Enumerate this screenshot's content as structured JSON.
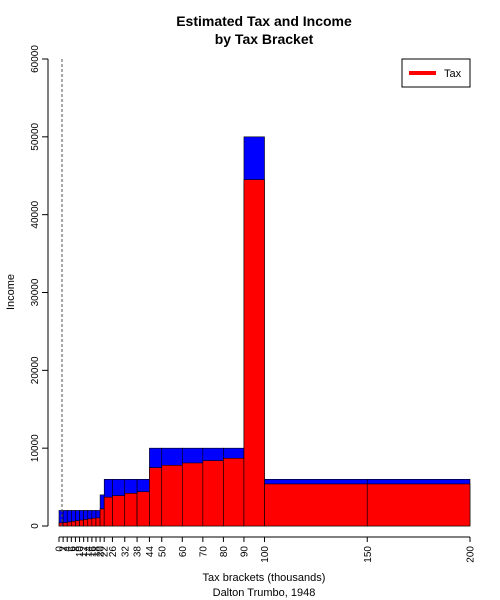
{
  "chart_data": {
    "type": "bar",
    "title": [
      "Estimated Tax and Income",
      "by Tax Bracket"
    ],
    "xlabel": "Tax brackets (thousands)",
    "subtitle": "Dalton Trumbo, 1948",
    "ylabel": "Income",
    "ylim": [
      0,
      60000
    ],
    "xlim": [
      0,
      200
    ],
    "y_ticks": [
      0,
      10000,
      20000,
      30000,
      40000,
      50000,
      60000
    ],
    "x_ticks": [
      0,
      2,
      4,
      6,
      8,
      10,
      12,
      14,
      16,
      18,
      20,
      22,
      26,
      32,
      38,
      44,
      50,
      60,
      70,
      80,
      90,
      100,
      150,
      200
    ],
    "x_tick_labels": [
      "0",
      "2",
      "4",
      "6",
      "8",
      "10",
      "12",
      "14",
      "16",
      "18",
      "20",
      "22",
      "26",
      "32",
      "38",
      "44",
      "50",
      "60",
      "70",
      "80",
      "90",
      "100",
      "150",
      "200"
    ],
    "reference_line_x": 0,
    "colors": {
      "income": "#0000ff",
      "tax": "#ff0000"
    },
    "legend": {
      "position": "top-right",
      "entries": [
        {
          "name": "Tax",
          "color": "#ff0000"
        }
      ]
    },
    "brackets": [
      {
        "lo": 0,
        "hi": 2,
        "income": 2000,
        "tax": 400
      },
      {
        "lo": 2,
        "hi": 4,
        "income": 2000,
        "tax": 440
      },
      {
        "lo": 4,
        "hi": 6,
        "income": 2000,
        "tax": 520
      },
      {
        "lo": 6,
        "hi": 8,
        "income": 2000,
        "tax": 600
      },
      {
        "lo": 8,
        "hi": 10,
        "income": 2000,
        "tax": 680
      },
      {
        "lo": 10,
        "hi": 12,
        "income": 2000,
        "tax": 760
      },
      {
        "lo": 12,
        "hi": 14,
        "income": 2000,
        "tax": 840
      },
      {
        "lo": 14,
        "hi": 16,
        "income": 2000,
        "tax": 920
      },
      {
        "lo": 16,
        "hi": 18,
        "income": 2000,
        "tax": 1000
      },
      {
        "lo": 18,
        "hi": 20,
        "income": 2000,
        "tax": 1040
      },
      {
        "lo": 20,
        "hi": 22,
        "income": 4000,
        "tax": 2200
      },
      {
        "lo": 22,
        "hi": 26,
        "income": 6000,
        "tax": 3700
      },
      {
        "lo": 26,
        "hi": 32,
        "income": 6000,
        "tax": 3900
      },
      {
        "lo": 32,
        "hi": 38,
        "income": 6000,
        "tax": 4200
      },
      {
        "lo": 38,
        "hi": 44,
        "income": 6000,
        "tax": 4400
      },
      {
        "lo": 44,
        "hi": 50,
        "income": 10000,
        "tax": 7500
      },
      {
        "lo": 50,
        "hi": 60,
        "income": 10000,
        "tax": 7800
      },
      {
        "lo": 60,
        "hi": 70,
        "income": 10000,
        "tax": 8100
      },
      {
        "lo": 70,
        "hi": 80,
        "income": 10000,
        "tax": 8400
      },
      {
        "lo": 80,
        "hi": 90,
        "income": 10000,
        "tax": 8700
      },
      {
        "lo": 90,
        "hi": 100,
        "income": 50000,
        "tax": 44500
      },
      {
        "lo": 100,
        "hi": 150,
        "income": 6000,
        "tax": 5400
      },
      {
        "lo": 150,
        "hi": 200,
        "income": 6000,
        "tax": 5400
      }
    ]
  }
}
